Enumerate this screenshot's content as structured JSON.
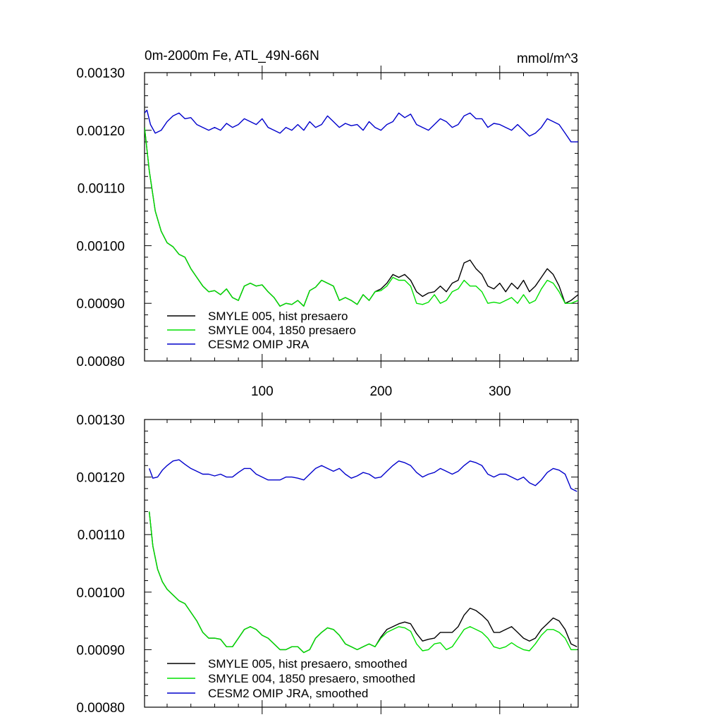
{
  "chart_data": [
    {
      "type": "line",
      "title": "0m-2000m Fe, ATL_49N-66N",
      "units": "mmol/m^3",
      "xlabel": "",
      "ylabel": "",
      "xlim": [
        1,
        366
      ],
      "ylim": [
        0.0008,
        0.0013
      ],
      "xticks": [
        100,
        200,
        300
      ],
      "xtick_labels": [
        "100",
        "200",
        "300"
      ],
      "yticks": [
        0.0008,
        0.0009,
        0.001,
        0.0011,
        0.0012,
        0.0013
      ],
      "ytick_labels": [
        "0.00080",
        "0.00090",
        "0.00100",
        "0.00110",
        "0.00120",
        "0.00130"
      ],
      "legend_position": "bottom-left",
      "grid": false,
      "series": [
        {
          "name": "SMYLE 005, hist presaero",
          "color": "#000000",
          "x": [
            1,
            5,
            10,
            15,
            20,
            25,
            30,
            35,
            40,
            45,
            50,
            55,
            60,
            65,
            70,
            75,
            80,
            85,
            90,
            95,
            100,
            105,
            110,
            115,
            120,
            125,
            130,
            135,
            140,
            145,
            150,
            155,
            160,
            165,
            170,
            175,
            180,
            185,
            190,
            195,
            200,
            205,
            210,
            215,
            220,
            225,
            230,
            235,
            240,
            245,
            250,
            255,
            260,
            265,
            270,
            275,
            280,
            285,
            290,
            295,
            300,
            305,
            310,
            315,
            320,
            325,
            330,
            335,
            340,
            345,
            350,
            355,
            360,
            366
          ],
          "y": [
            0.001205,
            0.00113,
            0.00106,
            0.001025,
            0.001005,
            0.000998,
            0.000985,
            0.00098,
            0.00096,
            0.000945,
            0.00093,
            0.00092,
            0.000922,
            0.000915,
            0.000925,
            0.00091,
            0.000905,
            0.00093,
            0.000935,
            0.00093,
            0.000932,
            0.00092,
            0.00091,
            0.000895,
            0.0009,
            0.000898,
            0.000905,
            0.000895,
            0.000922,
            0.000928,
            0.00094,
            0.000935,
            0.00093,
            0.000905,
            0.00091,
            0.000905,
            0.000898,
            0.000915,
            0.000905,
            0.00092,
            0.000925,
            0.000935,
            0.00095,
            0.000945,
            0.00095,
            0.00094,
            0.00092,
            0.000912,
            0.000918,
            0.00092,
            0.00093,
            0.00092,
            0.000935,
            0.00094,
            0.00097,
            0.000975,
            0.00096,
            0.00095,
            0.00093,
            0.000925,
            0.000935,
            0.00092,
            0.000935,
            0.000925,
            0.00094,
            0.00092,
            0.00093,
            0.000945,
            0.00096,
            0.00095,
            0.00093,
            0.0009,
            0.000905,
            0.000915
          ]
        },
        {
          "name": "SMYLE 004, 1850 presaero",
          "color": "#00e000",
          "x": [
            1,
            5,
            10,
            15,
            20,
            25,
            30,
            35,
            40,
            45,
            50,
            55,
            60,
            65,
            70,
            75,
            80,
            85,
            90,
            95,
            100,
            105,
            110,
            115,
            120,
            125,
            130,
            135,
            140,
            145,
            150,
            155,
            160,
            165,
            170,
            175,
            180,
            185,
            190,
            195,
            200,
            205,
            210,
            215,
            220,
            225,
            230,
            235,
            240,
            245,
            250,
            255,
            260,
            265,
            270,
            275,
            280,
            285,
            290,
            295,
            300,
            305,
            310,
            315,
            320,
            325,
            330,
            335,
            340,
            345,
            350,
            355,
            360,
            366
          ],
          "y": [
            0.001205,
            0.00113,
            0.00106,
            0.001025,
            0.001005,
            0.000998,
            0.000985,
            0.00098,
            0.00096,
            0.000945,
            0.00093,
            0.00092,
            0.000922,
            0.000915,
            0.000925,
            0.00091,
            0.000905,
            0.00093,
            0.000935,
            0.00093,
            0.000932,
            0.00092,
            0.00091,
            0.000895,
            0.0009,
            0.000898,
            0.000905,
            0.000895,
            0.000922,
            0.000928,
            0.00094,
            0.000935,
            0.00093,
            0.000905,
            0.00091,
            0.000905,
            0.000898,
            0.000915,
            0.000905,
            0.00092,
            0.000922,
            0.00093,
            0.000945,
            0.00094,
            0.00094,
            0.00093,
            0.0009,
            0.000898,
            0.000902,
            0.000915,
            0.0009,
            0.000905,
            0.00092,
            0.000925,
            0.00094,
            0.00093,
            0.00093,
            0.00092,
            0.0009,
            0.000902,
            0.0009,
            0.000905,
            0.00091,
            0.0009,
            0.000915,
            0.0009,
            0.000905,
            0.000925,
            0.00094,
            0.000935,
            0.00092,
            0.0009,
            0.0009,
            0.000905
          ]
        },
        {
          "name": "CESM2 OMIP JRA",
          "color": "#0000cc",
          "x": [
            1,
            3,
            6,
            10,
            15,
            20,
            25,
            30,
            35,
            40,
            45,
            50,
            55,
            60,
            65,
            70,
            75,
            80,
            85,
            90,
            95,
            100,
            105,
            110,
            115,
            120,
            125,
            130,
            135,
            140,
            145,
            150,
            155,
            160,
            165,
            170,
            175,
            180,
            185,
            190,
            195,
            200,
            205,
            210,
            215,
            220,
            225,
            230,
            235,
            240,
            245,
            250,
            255,
            260,
            265,
            270,
            275,
            280,
            285,
            290,
            295,
            300,
            305,
            310,
            315,
            320,
            325,
            330,
            335,
            340,
            345,
            350,
            355,
            360,
            366
          ],
          "y": [
            0.00123,
            0.001235,
            0.00121,
            0.001195,
            0.0012,
            0.001215,
            0.001225,
            0.00123,
            0.00122,
            0.001222,
            0.00121,
            0.001205,
            0.0012,
            0.001205,
            0.0012,
            0.001212,
            0.001205,
            0.00121,
            0.00122,
            0.001215,
            0.00121,
            0.00122,
            0.001205,
            0.0012,
            0.001195,
            0.001205,
            0.0012,
            0.00121,
            0.0012,
            0.001215,
            0.001205,
            0.00121,
            0.001225,
            0.001215,
            0.001205,
            0.001212,
            0.001208,
            0.00121,
            0.0012,
            0.001215,
            0.001205,
            0.0012,
            0.00121,
            0.001215,
            0.00123,
            0.001222,
            0.001228,
            0.00121,
            0.001205,
            0.0012,
            0.00121,
            0.00122,
            0.001215,
            0.001205,
            0.00121,
            0.001225,
            0.00123,
            0.00122,
            0.00122,
            0.001205,
            0.001212,
            0.00121,
            0.001205,
            0.0012,
            0.00121,
            0.0012,
            0.00119,
            0.001195,
            0.001205,
            0.00122,
            0.001215,
            0.00121,
            0.001195,
            0.00118,
            0.00118
          ]
        }
      ]
    },
    {
      "type": "line",
      "title": "",
      "units": "",
      "xlabel": "",
      "ylabel": "",
      "xlim": [
        1,
        366
      ],
      "ylim": [
        0.0008,
        0.0013
      ],
      "xticks": [
        100,
        200,
        300
      ],
      "xtick_labels": [],
      "yticks": [
        0.0008,
        0.0009,
        0.001,
        0.0011,
        0.0012,
        0.0013
      ],
      "ytick_labels": [
        "0.00080",
        "0.00090",
        "0.00100",
        "0.00110",
        "0.00120",
        "0.00130"
      ],
      "legend_position": "bottom-left",
      "grid": false,
      "series": [
        {
          "name": "SMYLE 005, hist presaero, smoothed",
          "color": "#000000",
          "x": [
            5,
            8,
            12,
            16,
            20,
            25,
            30,
            35,
            40,
            45,
            50,
            55,
            60,
            65,
            70,
            75,
            80,
            85,
            90,
            95,
            100,
            105,
            110,
            115,
            120,
            125,
            130,
            135,
            140,
            145,
            150,
            155,
            160,
            165,
            170,
            175,
            180,
            185,
            190,
            195,
            200,
            205,
            210,
            215,
            220,
            225,
            230,
            235,
            240,
            245,
            250,
            255,
            260,
            265,
            270,
            275,
            280,
            285,
            290,
            295,
            300,
            305,
            310,
            315,
            320,
            325,
            330,
            335,
            340,
            345,
            350,
            355,
            360,
            365
          ],
          "y": [
            0.00114,
            0.00108,
            0.00104,
            0.001018,
            0.001005,
            0.000995,
            0.000985,
            0.00098,
            0.000965,
            0.00095,
            0.00093,
            0.00092,
            0.00092,
            0.000918,
            0.000905,
            0.000905,
            0.00092,
            0.000935,
            0.00094,
            0.000935,
            0.000925,
            0.00092,
            0.00091,
            0.0009,
            0.0009,
            0.000905,
            0.000905,
            0.000895,
            0.0009,
            0.00092,
            0.00093,
            0.000938,
            0.000935,
            0.000925,
            0.00091,
            0.000905,
            0.0009,
            0.000905,
            0.00091,
            0.000905,
            0.000922,
            0.000935,
            0.00094,
            0.000945,
            0.000948,
            0.000945,
            0.000928,
            0.000915,
            0.000918,
            0.00092,
            0.00093,
            0.00093,
            0.00093,
            0.00094,
            0.00096,
            0.000972,
            0.000968,
            0.00096,
            0.00095,
            0.00093,
            0.00093,
            0.000935,
            0.00094,
            0.00093,
            0.00092,
            0.000915,
            0.00092,
            0.000935,
            0.000945,
            0.000955,
            0.00095,
            0.000935,
            0.00091,
            0.000905
          ]
        },
        {
          "name": "SMYLE 004, 1850 presaero, smoothed",
          "color": "#00e000",
          "x": [
            5,
            8,
            12,
            16,
            20,
            25,
            30,
            35,
            40,
            45,
            50,
            55,
            60,
            65,
            70,
            75,
            80,
            85,
            90,
            95,
            100,
            105,
            110,
            115,
            120,
            125,
            130,
            135,
            140,
            145,
            150,
            155,
            160,
            165,
            170,
            175,
            180,
            185,
            190,
            195,
            200,
            205,
            210,
            215,
            220,
            225,
            230,
            235,
            240,
            245,
            250,
            255,
            260,
            265,
            270,
            275,
            280,
            285,
            290,
            295,
            300,
            305,
            310,
            315,
            320,
            325,
            330,
            335,
            340,
            345,
            350,
            355,
            360,
            365
          ],
          "y": [
            0.00114,
            0.00108,
            0.00104,
            0.001018,
            0.001005,
            0.000995,
            0.000985,
            0.00098,
            0.000965,
            0.00095,
            0.00093,
            0.00092,
            0.00092,
            0.000918,
            0.000905,
            0.000905,
            0.00092,
            0.000935,
            0.00094,
            0.000935,
            0.000925,
            0.00092,
            0.00091,
            0.0009,
            0.0009,
            0.000905,
            0.000905,
            0.000895,
            0.0009,
            0.00092,
            0.00093,
            0.000938,
            0.000935,
            0.000925,
            0.00091,
            0.000905,
            0.0009,
            0.000905,
            0.00091,
            0.000905,
            0.00092,
            0.00093,
            0.000935,
            0.00094,
            0.000938,
            0.000932,
            0.00091,
            0.000898,
            0.0009,
            0.00091,
            0.000912,
            0.0009,
            0.000905,
            0.00092,
            0.000935,
            0.00094,
            0.000935,
            0.00093,
            0.00092,
            0.000905,
            0.000902,
            0.000905,
            0.000912,
            0.000905,
            0.0009,
            0.000898,
            0.00091,
            0.000925,
            0.000935,
            0.000935,
            0.00093,
            0.00092,
            0.0009,
            0.0009
          ]
        },
        {
          "name": "CESM2 OMIP JRA, smoothed",
          "color": "#0000cc",
          "x": [
            5,
            8,
            12,
            16,
            20,
            25,
            30,
            35,
            40,
            45,
            50,
            55,
            60,
            65,
            70,
            75,
            80,
            85,
            90,
            95,
            100,
            105,
            110,
            115,
            120,
            125,
            130,
            135,
            140,
            145,
            150,
            155,
            160,
            165,
            170,
            175,
            180,
            185,
            190,
            195,
            200,
            205,
            210,
            215,
            220,
            225,
            230,
            235,
            240,
            245,
            250,
            255,
            260,
            265,
            270,
            275,
            280,
            285,
            290,
            295,
            300,
            305,
            310,
            315,
            320,
            325,
            330,
            335,
            340,
            345,
            350,
            355,
            360,
            365
          ],
          "y": [
            0.001215,
            0.001198,
            0.0012,
            0.001212,
            0.00122,
            0.001228,
            0.00123,
            0.001222,
            0.001215,
            0.00121,
            0.001205,
            0.001205,
            0.001202,
            0.001205,
            0.0012,
            0.0012,
            0.001208,
            0.001215,
            0.001215,
            0.001205,
            0.0012,
            0.001195,
            0.001195,
            0.001195,
            0.0012,
            0.0012,
            0.001198,
            0.001195,
            0.001205,
            0.001215,
            0.00122,
            0.001215,
            0.00121,
            0.001215,
            0.001205,
            0.001198,
            0.001202,
            0.001208,
            0.001205,
            0.001198,
            0.0012,
            0.00121,
            0.00122,
            0.001228,
            0.001225,
            0.00122,
            0.001208,
            0.0012,
            0.001205,
            0.001208,
            0.001215,
            0.00121,
            0.001205,
            0.00121,
            0.00122,
            0.001228,
            0.001225,
            0.00122,
            0.001205,
            0.0012,
            0.001205,
            0.001205,
            0.0012,
            0.001195,
            0.0012,
            0.00119,
            0.001185,
            0.001195,
            0.001208,
            0.001215,
            0.001212,
            0.001205,
            0.00118,
            0.001175
          ]
        }
      ]
    }
  ]
}
